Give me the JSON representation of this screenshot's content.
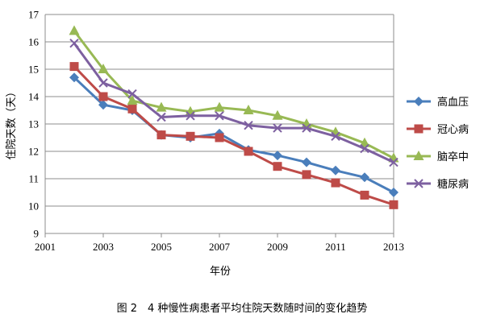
{
  "chart_data": {
    "type": "line",
    "title": "",
    "xlabel": "年份",
    "ylabel": "住院天数（天）",
    "xlim": [
      2001,
      2013
    ],
    "ylim": [
      9,
      17
    ],
    "xticks": [
      2001,
      2003,
      2005,
      2007,
      2009,
      2011,
      2013
    ],
    "yticks": [
      9,
      10,
      11,
      12,
      13,
      14,
      15,
      16,
      17
    ],
    "grid": "horizontal",
    "legend_position": "right",
    "x": [
      2002,
      2003,
      2004,
      2005,
      2006,
      2007,
      2008,
      2009,
      2010,
      2011,
      2012,
      2013
    ],
    "series": [
      {
        "name": "高血压",
        "marker": "diamond",
        "color": "#4a7ebb",
        "values": [
          14.7,
          13.7,
          13.5,
          12.6,
          12.5,
          12.65,
          12.05,
          11.85,
          11.6,
          11.3,
          11.05,
          10.5
        ]
      },
      {
        "name": "冠心病",
        "marker": "square",
        "color": "#be4b48",
        "values": [
          15.1,
          14.0,
          13.55,
          12.6,
          12.55,
          12.5,
          12.0,
          11.45,
          11.15,
          10.85,
          10.4,
          10.05
        ]
      },
      {
        "name": "脑卒中",
        "marker": "triangle",
        "color": "#98b954",
        "values": [
          16.4,
          15.0,
          13.85,
          13.6,
          13.45,
          13.6,
          13.5,
          13.3,
          13.0,
          12.7,
          12.3,
          11.75
        ]
      },
      {
        "name": "糖尿病",
        "marker": "x",
        "color": "#7d60a0",
        "values": [
          15.95,
          14.5,
          14.1,
          13.25,
          13.3,
          13.3,
          12.95,
          12.85,
          12.85,
          12.55,
          12.1,
          11.6
        ]
      }
    ]
  },
  "caption": "图 2　4 种慢性病患者平均住院天数随时间的变化趋势"
}
